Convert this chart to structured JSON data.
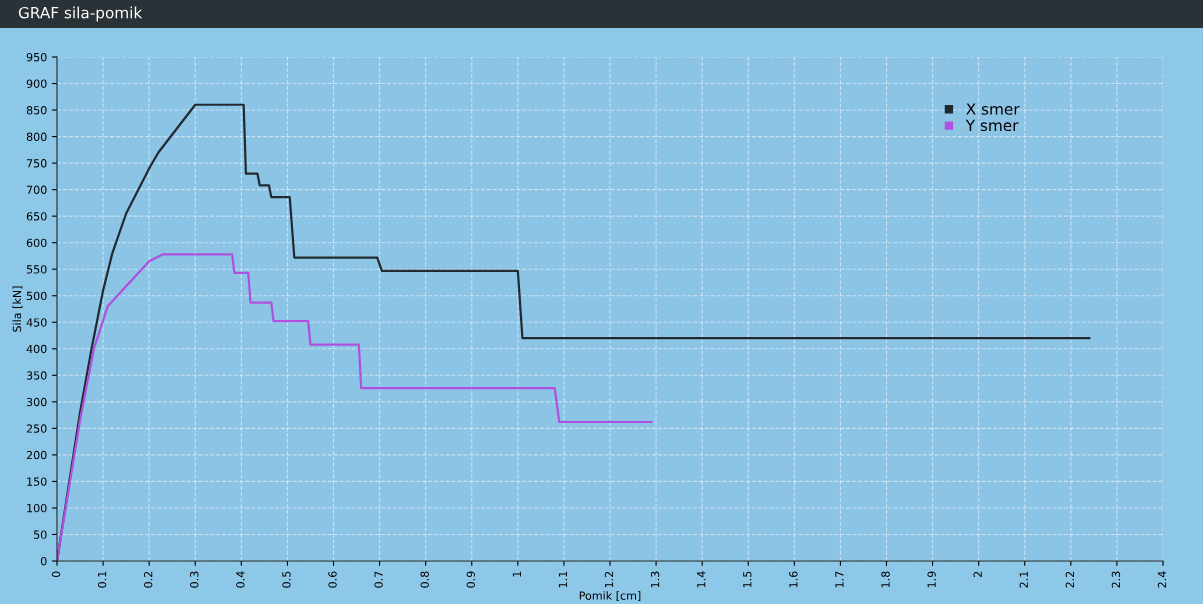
{
  "chart_data": {
    "type": "line",
    "title": "GRAF sila-pomik",
    "xlabel": "Pomik [cm]",
    "ylabel": "Sila [kN]",
    "series": [
      {
        "name": "X smer",
        "color": "#222a30",
        "x": [
          0,
          0.025,
          0.05,
          0.075,
          0.1,
          0.12,
          0.15,
          0.2,
          0.22,
          0.3,
          0.405,
          0.41,
          0.435,
          0.44,
          0.46,
          0.465,
          0.505,
          0.515,
          0.695,
          0.705,
          1.0,
          1.01,
          2.24
        ],
        "values": [
          0,
          140,
          280,
          400,
          510,
          580,
          655,
          740,
          770,
          860,
          860,
          730,
          730,
          708,
          708,
          686,
          686,
          572,
          572,
          547,
          547,
          420,
          420
        ]
      },
      {
        "name": "Y smer",
        "color": "#b050e0",
        "x": [
          0,
          0.05,
          0.08,
          0.11,
          0.2,
          0.23,
          0.38,
          0.385,
          0.415,
          0.42,
          0.465,
          0.47,
          0.545,
          0.55,
          0.655,
          0.66,
          1.08,
          1.09,
          1.29
        ],
        "values": [
          0,
          265,
          400,
          480,
          565,
          578,
          578,
          543,
          543,
          487,
          487,
          452,
          452,
          408,
          408,
          326,
          326,
          262,
          262
        ]
      }
    ],
    "xlim": [
      0,
      2.4
    ],
    "xticks": [
      0,
      0.1,
      0.2,
      0.3,
      0.4,
      0.5,
      0.6,
      0.7,
      0.8,
      0.9,
      1,
      1.1,
      1.2,
      1.3,
      1.4,
      1.5,
      1.6,
      1.7,
      1.8,
      1.9,
      2,
      2.1,
      2.2,
      2.3,
      2.4
    ],
    "ylim": [
      0,
      950
    ],
    "yticks": [
      0,
      50,
      100,
      150,
      200,
      250,
      300,
      350,
      400,
      450,
      500,
      550,
      600,
      650,
      700,
      750,
      800,
      850,
      900,
      950
    ],
    "grid": true,
    "legend": "top right",
    "marker": "none",
    "line_style": "solid"
  }
}
